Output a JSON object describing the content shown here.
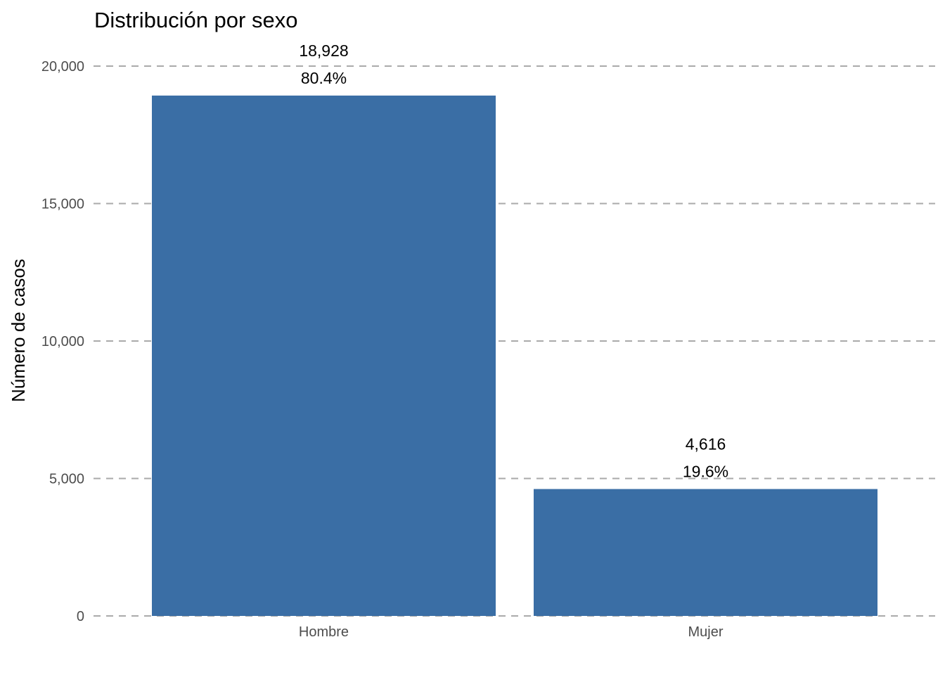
{
  "chart_data": {
    "type": "bar",
    "title": "Distribución por sexo",
    "xlabel": "",
    "ylabel": "Número de casos",
    "categories": [
      "Hombre",
      "Mujer"
    ],
    "values": [
      18928,
      4616
    ],
    "value_labels": [
      "18,928",
      "4,616"
    ],
    "percent_labels": [
      "80.4%",
      "19.6%"
    ],
    "ylim": [
      0,
      20000
    ],
    "yticks": [
      0,
      5000,
      10000,
      15000,
      20000
    ],
    "ytick_labels": [
      "0",
      "5,000",
      "10,000",
      "15,000",
      "20,000"
    ],
    "grid": "horizontal dashed",
    "legend": "none",
    "colors": {
      "bar": "#3A6EA5",
      "grid": "#AAAAAA",
      "tick_text": "#4D4D4D",
      "text": "#000000"
    }
  }
}
